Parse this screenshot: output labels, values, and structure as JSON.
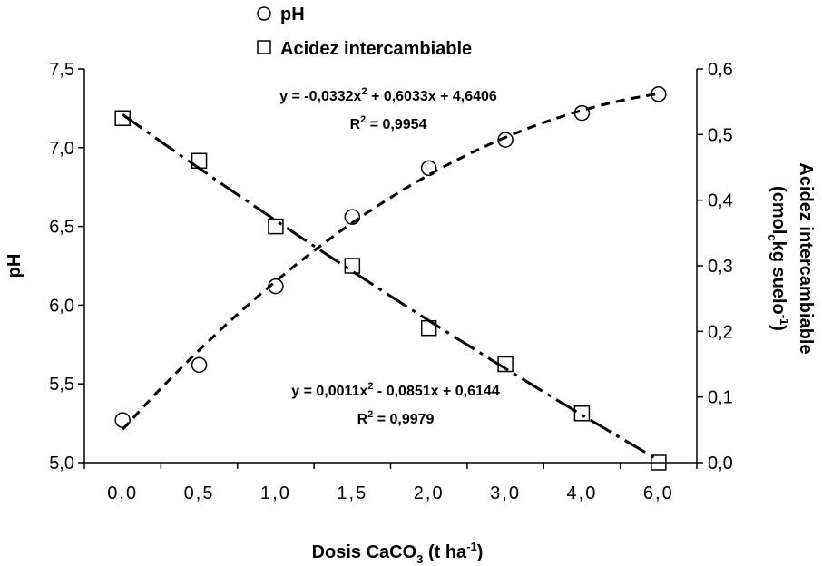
{
  "chart_data": {
    "type": "scatter",
    "categories": [
      "0,0",
      "0,5",
      "1,0",
      "1,5",
      "2,0",
      "3,0",
      "4,0",
      "6,0"
    ],
    "xlabel_parts": [
      "Dosis CaCO",
      "3",
      " (t ha",
      "-1",
      ")"
    ],
    "ylabel_left": "pH",
    "ylabel_right_line1": "Acidez intercambiable",
    "ylabel_right_line2_parts": [
      "(cmol",
      "c",
      "kg suelo",
      "-1",
      ")"
    ],
    "y_left": {
      "range": [
        5.0,
        7.5
      ],
      "ticks": [
        5.0,
        5.5,
        6.0,
        6.5,
        7.0,
        7.5
      ],
      "tick_labels": [
        "5,0",
        "5,5",
        "6,0",
        "6,5",
        "7,0",
        "7,5"
      ]
    },
    "y_right": {
      "range": [
        0.0,
        0.6
      ],
      "ticks": [
        0.0,
        0.1,
        0.2,
        0.3,
        0.4,
        0.5,
        0.6
      ],
      "tick_labels": [
        "0,0",
        "0,1",
        "0,2",
        "0,3",
        "0,4",
        "0,5",
        "0,6"
      ]
    },
    "series": [
      {
        "name": "pH",
        "marker": "circle",
        "axis": "left",
        "values": [
          5.27,
          5.62,
          6.12,
          6.56,
          6.87,
          7.05,
          7.22,
          7.34
        ],
        "trendline": {
          "a": -0.0332,
          "b": 0.6033,
          "c": 4.6406,
          "style": "dashed"
        },
        "equation_parts": [
          "y = -0,0332x",
          "2",
          " + 0,6033x + 4,6406"
        ],
        "r2_parts": [
          "R",
          "2",
          " = 0,9954"
        ]
      },
      {
        "name": "Acidez intercambiable",
        "marker": "square",
        "axis": "right",
        "values": [
          0.525,
          0.46,
          0.36,
          0.3,
          0.205,
          0.15,
          0.075,
          0.0
        ],
        "trendline": {
          "a": 0.0011,
          "b": -0.0851,
          "c": 0.6144,
          "style": "dash-dot"
        },
        "equation_parts": [
          "y = 0,0011x",
          "2",
          " - 0,0851x + 0,6144"
        ],
        "r2_parts": [
          "R",
          "2",
          " = 0,9979"
        ]
      }
    ],
    "legend": [
      "pH",
      "Acidez intercambiable"
    ],
    "legend_position": "top",
    "grid": false
  }
}
